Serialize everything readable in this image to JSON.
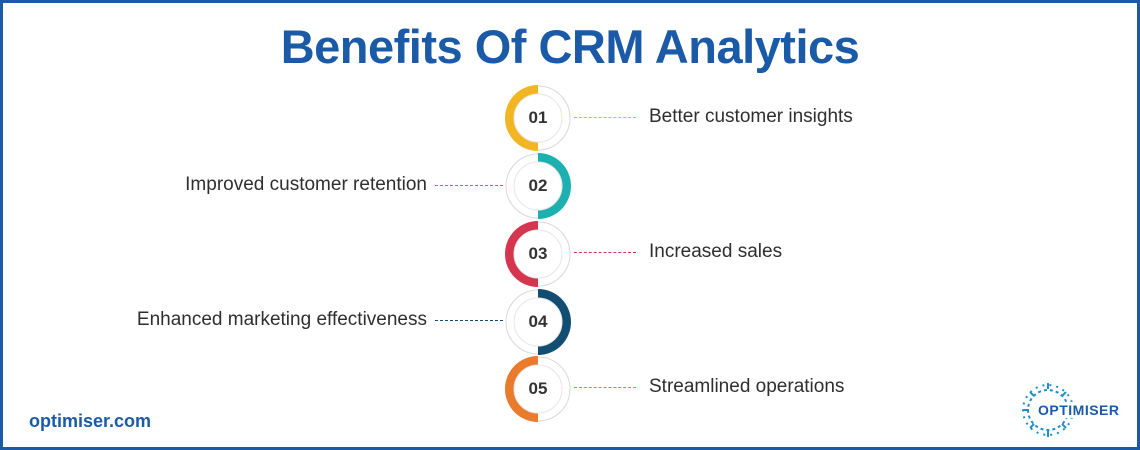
{
  "title": "Benefits Of CRM Analytics",
  "steps": [
    {
      "number": "01",
      "label": "Better customer insights",
      "color": "#f2b623",
      "side": "right"
    },
    {
      "number": "02",
      "label": "Improved customer retention",
      "color": "#1eb0b0",
      "side": "left"
    },
    {
      "number": "03",
      "label": "Increased sales",
      "color": "#d6354f",
      "side": "right"
    },
    {
      "number": "04",
      "label": "Enhanced marketing effectiveness",
      "color": "#124e72",
      "side": "left"
    },
    {
      "number": "05",
      "label": "Streamlined operations",
      "color": "#ea7a2c",
      "side": "right"
    }
  ],
  "footer": {
    "website": "optimiser.com"
  },
  "logo": {
    "text": "OPTIMISER"
  },
  "colors": {
    "brand": "#1a5aa6",
    "text": "#2f2f2f"
  }
}
